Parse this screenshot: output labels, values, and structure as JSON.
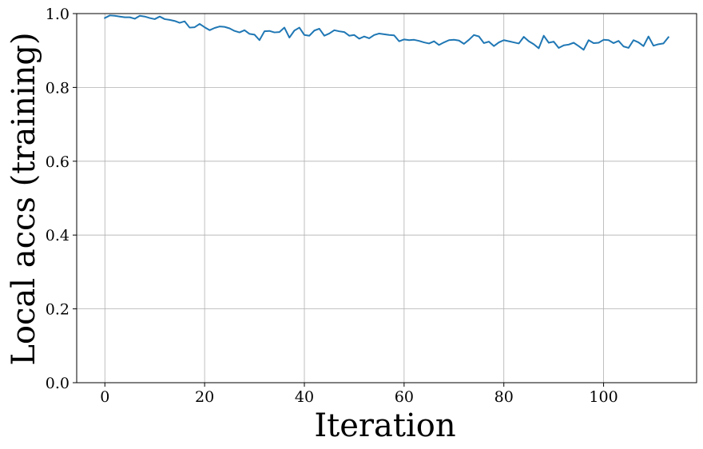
{
  "chart_data": {
    "type": "line",
    "title": "",
    "xlabel": "Iteration",
    "ylabel": "Local accs (training)",
    "xlim": [
      -5.65,
      118.65
    ],
    "ylim": [
      0.0,
      1.0
    ],
    "xticks": [
      0,
      20,
      40,
      60,
      80,
      100
    ],
    "xtick_labels": [
      "0",
      "20",
      "40",
      "60",
      "80",
      "100"
    ],
    "yticks": [
      0.0,
      0.2,
      0.4,
      0.6,
      0.8,
      1.0
    ],
    "ytick_labels": [
      "0.0",
      "0.2",
      "0.4",
      "0.6",
      "0.8",
      "1.0"
    ],
    "grid": true,
    "line_color": "#1f77b4",
    "series": [
      {
        "values": [
          0.988,
          0.995,
          0.994,
          0.992,
          0.99,
          0.99,
          0.986,
          0.994,
          0.992,
          0.988,
          0.985,
          0.992,
          0.985,
          0.983,
          0.98,
          0.975,
          0.979,
          0.962,
          0.963,
          0.972,
          0.963,
          0.955,
          0.961,
          0.965,
          0.964,
          0.96,
          0.953,
          0.949,
          0.955,
          0.945,
          0.943,
          0.928,
          0.952,
          0.953,
          0.949,
          0.95,
          0.962,
          0.935,
          0.954,
          0.962,
          0.942,
          0.94,
          0.954,
          0.959,
          0.94,
          0.946,
          0.955,
          0.952,
          0.95,
          0.94,
          0.942,
          0.932,
          0.938,
          0.933,
          0.942,
          0.946,
          0.944,
          0.942,
          0.941,
          0.925,
          0.93,
          0.928,
          0.929,
          0.926,
          0.922,
          0.919,
          0.925,
          0.915,
          0.922,
          0.928,
          0.929,
          0.927,
          0.918,
          0.929,
          0.942,
          0.938,
          0.92,
          0.924,
          0.912,
          0.922,
          0.928,
          0.925,
          0.922,
          0.919,
          0.937,
          0.925,
          0.917,
          0.906,
          0.94,
          0.921,
          0.924,
          0.907,
          0.914,
          0.916,
          0.921,
          0.912,
          0.902,
          0.928,
          0.92,
          0.921,
          0.929,
          0.928,
          0.92,
          0.926,
          0.911,
          0.907,
          0.928,
          0.922,
          0.912,
          0.938,
          0.913,
          0.917,
          0.919,
          0.936
        ]
      }
    ]
  }
}
